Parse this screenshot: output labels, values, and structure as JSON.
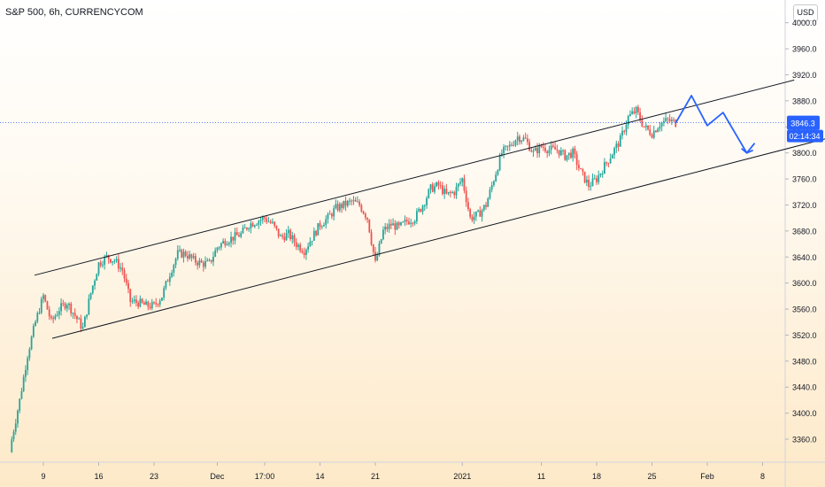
{
  "header": {
    "symbol_line": "S&P 500, 6h, CURRENCYCOM"
  },
  "currency_button": {
    "label": "USD"
  },
  "price_badge": {
    "value": "3846.3",
    "color": "#2962ff"
  },
  "countdown_badge": {
    "value": "02:14:34",
    "color": "#2962ff"
  },
  "chart_data": {
    "type": "candlestick",
    "title": "",
    "xlabel": "",
    "ylabel": "",
    "ylim": [
      3326,
      4020
    ],
    "y_ticks": [
      "4000.0",
      "3960.0",
      "3920.0",
      "3880.0",
      "3840.0",
      "3800.0",
      "3760.0",
      "3720.0",
      "3680.0",
      "3640.0",
      "3600.0",
      "3560.0",
      "3520.0",
      "3480.0",
      "3440.0",
      "3400.0",
      "3360.0"
    ],
    "x_ticks": [
      {
        "label": "9",
        "day": 0
      },
      {
        "label": "16",
        "day": 7
      },
      {
        "label": "23",
        "day": 14
      },
      {
        "label": "Dec",
        "day": 22
      },
      {
        "label": "17:00",
        "day": 28
      },
      {
        "label": "14",
        "day": 35
      },
      {
        "label": "21",
        "day": 42
      },
      {
        "label": "2021",
        "day": 53
      },
      {
        "label": "11",
        "day": 63
      },
      {
        "label": "18",
        "day": 70
      },
      {
        "label": "25",
        "day": 77
      },
      {
        "label": "Feb",
        "day": 84
      },
      {
        "label": "8",
        "day": 91
      }
    ],
    "x_range_days": [
      -4,
      95
    ],
    "series": [
      {
        "name": "",
        "points": [
          {
            "day": -4,
            "close": 3360
          },
          {
            "day": -3,
            "close": 3420
          },
          {
            "day": -2,
            "close": 3490
          },
          {
            "day": -1,
            "close": 3540
          },
          {
            "day": 0,
            "close": 3580
          },
          {
            "day": 1,
            "close": 3540
          },
          {
            "day": 2,
            "close": 3560
          },
          {
            "day": 3,
            "close": 3570
          },
          {
            "day": 4,
            "close": 3550
          },
          {
            "day": 5,
            "close": 3530
          },
          {
            "day": 6,
            "close": 3585
          },
          {
            "day": 7,
            "close": 3630
          },
          {
            "day": 8,
            "close": 3640
          },
          {
            "day": 9,
            "close": 3635
          },
          {
            "day": 10,
            "close": 3620
          },
          {
            "day": 11,
            "close": 3572
          },
          {
            "day": 12,
            "close": 3570
          },
          {
            "day": 13,
            "close": 3565
          },
          {
            "day": 14,
            "close": 3565
          },
          {
            "day": 15,
            "close": 3580
          },
          {
            "day": 16,
            "close": 3615
          },
          {
            "day": 17,
            "close": 3645
          },
          {
            "day": 18,
            "close": 3645
          },
          {
            "day": 19,
            "close": 3635
          },
          {
            "day": 20,
            "close": 3630
          },
          {
            "day": 21,
            "close": 3630
          },
          {
            "day": 22,
            "close": 3655
          },
          {
            "day": 23,
            "close": 3665
          },
          {
            "day": 24,
            "close": 3670
          },
          {
            "day": 25,
            "close": 3675
          },
          {
            "day": 26,
            "close": 3690
          },
          {
            "day": 27,
            "close": 3695
          },
          {
            "day": 28,
            "close": 3700
          },
          {
            "day": 29,
            "close": 3690
          },
          {
            "day": 30,
            "close": 3670
          },
          {
            "day": 31,
            "close": 3675
          },
          {
            "day": 32,
            "close": 3660
          },
          {
            "day": 33,
            "close": 3650
          },
          {
            "day": 34,
            "close": 3670
          },
          {
            "day": 35,
            "close": 3690
          },
          {
            "day": 36,
            "close": 3700
          },
          {
            "day": 37,
            "close": 3715
          },
          {
            "day": 38,
            "close": 3720
          },
          {
            "day": 39,
            "close": 3725
          },
          {
            "day": 40,
            "close": 3720
          },
          {
            "day": 41,
            "close": 3700
          },
          {
            "day": 42,
            "close": 3630
          },
          {
            "day": 43,
            "close": 3680
          },
          {
            "day": 44,
            "close": 3690
          },
          {
            "day": 45,
            "close": 3685
          },
          {
            "day": 46,
            "close": 3695
          },
          {
            "day": 47,
            "close": 3700
          },
          {
            "day": 48,
            "close": 3720
          },
          {
            "day": 49,
            "close": 3745
          },
          {
            "day": 50,
            "close": 3750
          },
          {
            "day": 51,
            "close": 3735
          },
          {
            "day": 52,
            "close": 3740
          },
          {
            "day": 53,
            "close": 3760
          },
          {
            "day": 54,
            "close": 3700
          },
          {
            "day": 55,
            "close": 3705
          },
          {
            "day": 56,
            "close": 3720
          },
          {
            "day": 57,
            "close": 3760
          },
          {
            "day": 58,
            "close": 3800
          },
          {
            "day": 59,
            "close": 3810
          },
          {
            "day": 60,
            "close": 3825
          },
          {
            "day": 61,
            "close": 3820
          },
          {
            "day": 62,
            "close": 3800
          },
          {
            "day": 63,
            "close": 3810
          },
          {
            "day": 64,
            "close": 3805
          },
          {
            "day": 65,
            "close": 3805
          },
          {
            "day": 66,
            "close": 3795
          },
          {
            "day": 67,
            "close": 3800
          },
          {
            "day": 68,
            "close": 3770
          },
          {
            "day": 69,
            "close": 3750
          },
          {
            "day": 70,
            "close": 3760
          },
          {
            "day": 71,
            "close": 3780
          },
          {
            "day": 72,
            "close": 3800
          },
          {
            "day": 73,
            "close": 3820
          },
          {
            "day": 74,
            "close": 3855
          },
          {
            "day": 75,
            "close": 3865
          },
          {
            "day": 76,
            "close": 3840
          },
          {
            "day": 77,
            "close": 3830
          },
          {
            "day": 78,
            "close": 3845
          },
          {
            "day": 79,
            "close": 3850
          },
          {
            "day": 80,
            "close": 3846.3
          }
        ]
      }
    ],
    "channel_upper": [
      {
        "day": 0,
        "price": 3612
      },
      {
        "day": 95,
        "price": 3912
      }
    ],
    "channel_lower": [
      {
        "day": 0,
        "price": 3515
      },
      {
        "day": 100,
        "price": 3825
      }
    ],
    "projection": [
      {
        "day": 80,
        "price": 3846
      },
      {
        "day": 82,
        "price": 3888
      },
      {
        "day": 84,
        "price": 3842
      },
      {
        "day": 86,
        "price": 3862
      },
      {
        "day": 89,
        "price": 3800
      },
      {
        "day": 90,
        "price": 3815
      }
    ],
    "current_price_line": 3846.3,
    "colors": {
      "up": "#26a69a",
      "down": "#ef5350",
      "projection": "#2962ff",
      "channel": "#131722"
    }
  }
}
